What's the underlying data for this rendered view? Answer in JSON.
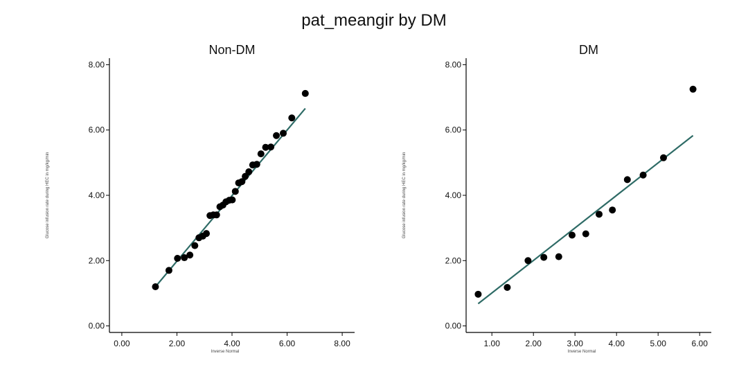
{
  "chart_data": {
    "title": "pat_meangir by DM",
    "panels": [
      {
        "type": "scatter",
        "title": "Non-DM",
        "xlabel": "Inverse Normal",
        "ylabel": "Glucose infusion rate during HEC in mg/kg/min",
        "xlim": [
          -0.45,
          8.45
        ],
        "ylim": [
          -0.2,
          8.2
        ],
        "xticks": [
          0,
          2,
          4,
          6,
          8
        ],
        "xtick_labels": [
          "0.00",
          "2.00",
          "4.00",
          "6.00",
          "8.00"
        ],
        "yticks": [
          0,
          2,
          4,
          6,
          8
        ],
        "ytick_labels": [
          "0.00",
          "2.00",
          "4.00",
          "6.00",
          "8.00"
        ],
        "points": [
          [
            1.22,
            1.2
          ],
          [
            1.71,
            1.7
          ],
          [
            2.02,
            2.07
          ],
          [
            2.27,
            2.09
          ],
          [
            2.47,
            2.17
          ],
          [
            2.65,
            2.46
          ],
          [
            2.8,
            2.7
          ],
          [
            2.94,
            2.75
          ],
          [
            3.07,
            2.83
          ],
          [
            3.2,
            3.38
          ],
          [
            3.32,
            3.4
          ],
          [
            3.44,
            3.4
          ],
          [
            3.56,
            3.65
          ],
          [
            3.67,
            3.7
          ],
          [
            3.78,
            3.8
          ],
          [
            3.9,
            3.85
          ],
          [
            4.01,
            3.86
          ],
          [
            4.12,
            4.12
          ],
          [
            4.24,
            4.38
          ],
          [
            4.36,
            4.42
          ],
          [
            4.48,
            4.58
          ],
          [
            4.61,
            4.72
          ],
          [
            4.75,
            4.93
          ],
          [
            4.9,
            4.95
          ],
          [
            5.05,
            5.27
          ],
          [
            5.22,
            5.47
          ],
          [
            5.41,
            5.48
          ],
          [
            5.61,
            5.83
          ],
          [
            5.86,
            5.9
          ],
          [
            6.17,
            6.37
          ],
          [
            6.66,
            7.12
          ]
        ],
        "fit_line": [
          [
            1.22,
            1.2
          ],
          [
            6.66,
            6.66
          ]
        ]
      },
      {
        "type": "scatter",
        "title": "DM",
        "xlabel": "Inverse Normal",
        "ylabel": "Glucose infusion rate during HEC in mg/kg/min",
        "xlim": [
          0.38,
          6.28
        ],
        "ylim": [
          -0.2,
          8.2
        ],
        "xticks": [
          1,
          2,
          3,
          4,
          5,
          6
        ],
        "xtick_labels": [
          "1.00",
          "2.00",
          "3.00",
          "4.00",
          "5.00",
          "6.00"
        ],
        "yticks": [
          0,
          2,
          4,
          6,
          8
        ],
        "ytick_labels": [
          "0.00",
          "2.00",
          "4.00",
          "6.00",
          "8.00"
        ],
        "points": [
          [
            0.67,
            0.97
          ],
          [
            1.37,
            1.18
          ],
          [
            1.87,
            2.0
          ],
          [
            2.25,
            2.1
          ],
          [
            2.61,
            2.12
          ],
          [
            2.93,
            2.78
          ],
          [
            3.26,
            2.82
          ],
          [
            3.58,
            3.42
          ],
          [
            3.9,
            3.55
          ],
          [
            4.26,
            4.48
          ],
          [
            4.64,
            4.62
          ],
          [
            5.13,
            5.15
          ],
          [
            5.84,
            7.25
          ]
        ],
        "fit_line": [
          [
            0.67,
            0.68
          ],
          [
            5.84,
            5.83
          ]
        ]
      }
    ],
    "colors": {
      "points": "#000000",
      "line": "#2e6b66",
      "axis": "#000000"
    }
  }
}
